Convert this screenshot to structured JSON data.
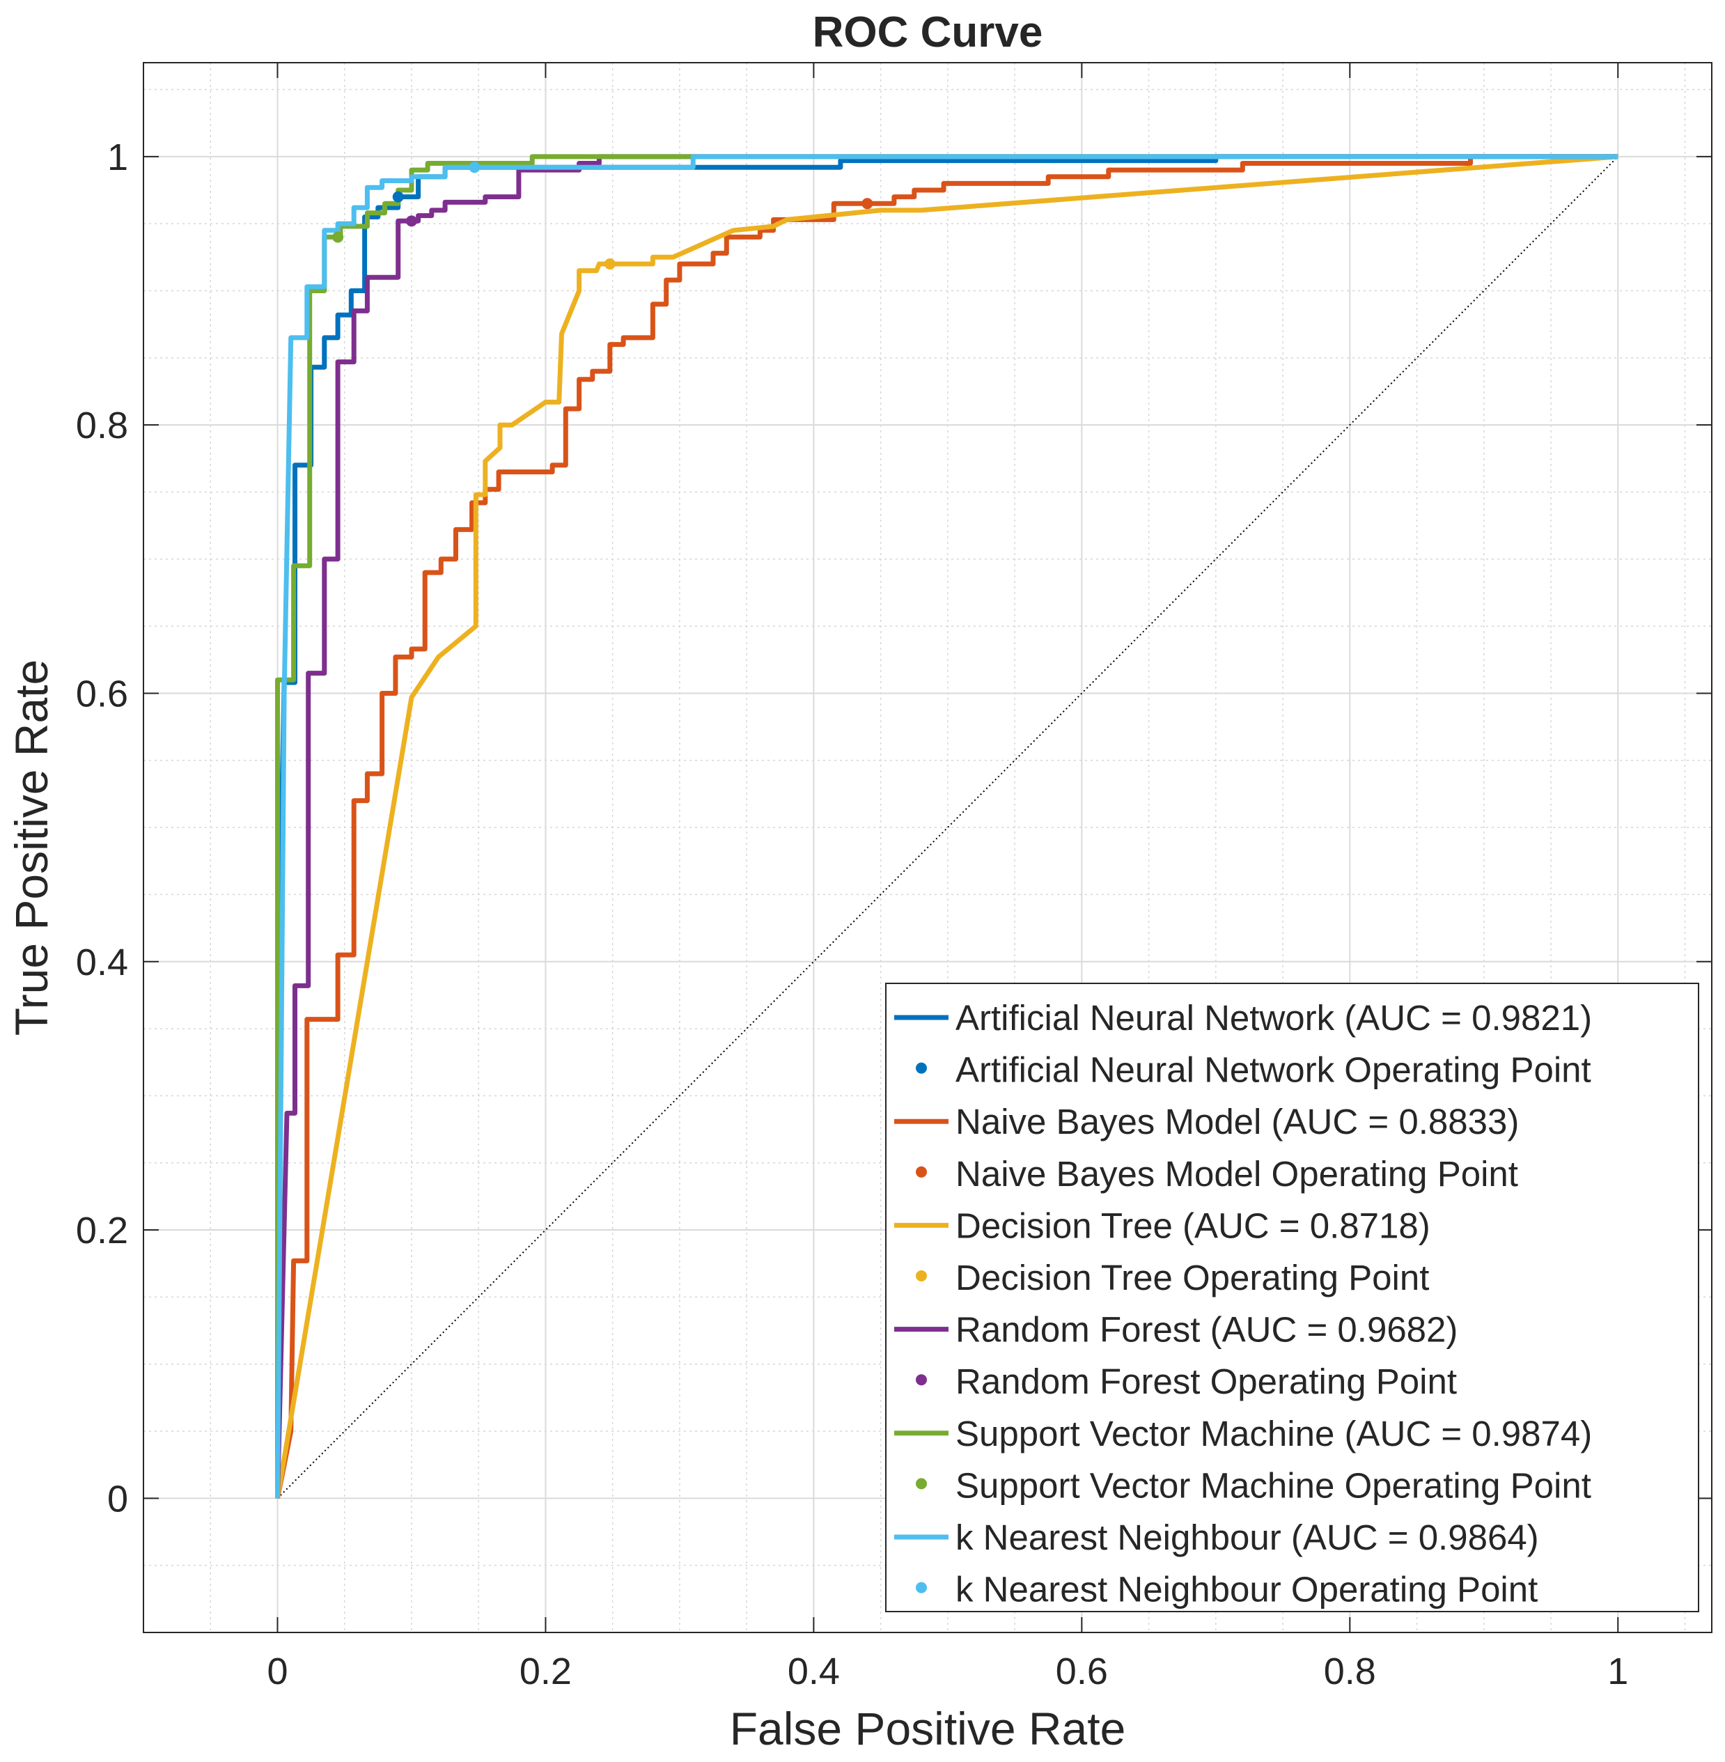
{
  "chart_data": {
    "type": "line",
    "title": "ROC Curve",
    "xlabel": "False Positive Rate",
    "ylabel": "True Positive Rate",
    "xlim": [
      -0.1,
      1.07
    ],
    "ylim": [
      -0.1,
      1.07
    ],
    "grid": true,
    "minor_grid": true,
    "legend_position": "bottom-right",
    "x_ticks": [
      {
        "value": 0,
        "label": "0"
      },
      {
        "value": 0.2,
        "label": "0.2"
      },
      {
        "value": 0.4,
        "label": "0.4"
      },
      {
        "value": 0.6,
        "label": "0.6"
      },
      {
        "value": 0.8,
        "label": "0.8"
      },
      {
        "value": 1,
        "label": "1"
      }
    ],
    "y_ticks": [
      {
        "value": 0,
        "label": "0"
      },
      {
        "value": 0.2,
        "label": "0.2"
      },
      {
        "value": 0.4,
        "label": "0.4"
      },
      {
        "value": 0.6,
        "label": "0.6"
      },
      {
        "value": 0.8,
        "label": "0.8"
      },
      {
        "value": 1,
        "label": "1"
      }
    ],
    "chance_line": {
      "points": [
        [
          0,
          0
        ],
        [
          1,
          1
        ]
      ],
      "color": "#000000",
      "style": "dotted"
    },
    "series": [
      {
        "name": "Artificial Neural Network (AUC = 0.9821)",
        "op_name": "Artificial Neural Network Operating Point",
        "color": "#0072BD",
        "operating_point": [
          0.09,
          0.97
        ],
        "points": [
          [
            0,
            0
          ],
          [
            0,
            0.35
          ],
          [
            0.005,
            0.608
          ],
          [
            0.013,
            0.608
          ],
          [
            0.013,
            0.77
          ],
          [
            0.025,
            0.77
          ],
          [
            0.025,
            0.843
          ],
          [
            0.035,
            0.843
          ],
          [
            0.035,
            0.865
          ],
          [
            0.045,
            0.865
          ],
          [
            0.045,
            0.882
          ],
          [
            0.055,
            0.882
          ],
          [
            0.055,
            0.9
          ],
          [
            0.065,
            0.9
          ],
          [
            0.065,
            0.955
          ],
          [
            0.075,
            0.955
          ],
          [
            0.075,
            0.962
          ],
          [
            0.09,
            0.962
          ],
          [
            0.09,
            0.97
          ],
          [
            0.105,
            0.97
          ],
          [
            0.105,
            0.985
          ],
          [
            0.125,
            0.985
          ],
          [
            0.125,
            0.992
          ],
          [
            0.42,
            0.992
          ],
          [
            0.42,
            0.997
          ],
          [
            0.7,
            0.997
          ],
          [
            0.7,
            1.0
          ],
          [
            1,
            1
          ]
        ]
      },
      {
        "name": "Naive Bayes Model (AUC = 0.8833)",
        "op_name": "Naive Bayes Model Operating Point",
        "color": "#D95319",
        "operating_point": [
          0.44,
          0.965
        ],
        "points": [
          [
            0,
            0
          ],
          [
            0.01,
            0.05
          ],
          [
            0.012,
            0.177
          ],
          [
            0.022,
            0.177
          ],
          [
            0.022,
            0.357
          ],
          [
            0.045,
            0.357
          ],
          [
            0.045,
            0.405
          ],
          [
            0.057,
            0.405
          ],
          [
            0.057,
            0.52
          ],
          [
            0.067,
            0.52
          ],
          [
            0.067,
            0.54
          ],
          [
            0.078,
            0.54
          ],
          [
            0.078,
            0.6
          ],
          [
            0.088,
            0.6
          ],
          [
            0.088,
            0.627
          ],
          [
            0.1,
            0.627
          ],
          [
            0.1,
            0.633
          ],
          [
            0.11,
            0.633
          ],
          [
            0.11,
            0.69
          ],
          [
            0.122,
            0.69
          ],
          [
            0.122,
            0.7
          ],
          [
            0.133,
            0.7
          ],
          [
            0.133,
            0.722
          ],
          [
            0.145,
            0.722
          ],
          [
            0.145,
            0.742
          ],
          [
            0.155,
            0.742
          ],
          [
            0.155,
            0.752
          ],
          [
            0.165,
            0.752
          ],
          [
            0.165,
            0.765
          ],
          [
            0.205,
            0.765
          ],
          [
            0.205,
            0.77
          ],
          [
            0.215,
            0.77
          ],
          [
            0.215,
            0.812
          ],
          [
            0.225,
            0.812
          ],
          [
            0.225,
            0.834
          ],
          [
            0.235,
            0.834
          ],
          [
            0.235,
            0.84
          ],
          [
            0.248,
            0.84
          ],
          [
            0.248,
            0.86
          ],
          [
            0.258,
            0.86
          ],
          [
            0.258,
            0.865
          ],
          [
            0.28,
            0.865
          ],
          [
            0.28,
            0.89
          ],
          [
            0.29,
            0.89
          ],
          [
            0.29,
            0.908
          ],
          [
            0.3,
            0.908
          ],
          [
            0.3,
            0.92
          ],
          [
            0.325,
            0.92
          ],
          [
            0.325,
            0.928
          ],
          [
            0.335,
            0.928
          ],
          [
            0.335,
            0.94
          ],
          [
            0.36,
            0.94
          ],
          [
            0.36,
            0.945
          ],
          [
            0.37,
            0.945
          ],
          [
            0.37,
            0.953
          ],
          [
            0.415,
            0.953
          ],
          [
            0.415,
            0.965
          ],
          [
            0.46,
            0.965
          ],
          [
            0.46,
            0.97
          ],
          [
            0.475,
            0.97
          ],
          [
            0.475,
            0.975
          ],
          [
            0.497,
            0.975
          ],
          [
            0.497,
            0.98
          ],
          [
            0.575,
            0.98
          ],
          [
            0.575,
            0.985
          ],
          [
            0.62,
            0.985
          ],
          [
            0.62,
            0.99
          ],
          [
            0.72,
            0.99
          ],
          [
            0.72,
            0.995
          ],
          [
            0.89,
            0.995
          ],
          [
            0.89,
            1.0
          ],
          [
            1,
            1
          ]
        ]
      },
      {
        "name": "Decision Tree (AUC = 0.8718)",
        "op_name": "Decision Tree Operating Point",
        "color": "#EDB120",
        "operating_point": [
          0.248,
          0.92
        ],
        "points": [
          [
            0,
            0
          ],
          [
            0.1,
            0.597
          ],
          [
            0.12,
            0.627
          ],
          [
            0.148,
            0.65
          ],
          [
            0.148,
            0.748
          ],
          [
            0.155,
            0.748
          ],
          [
            0.155,
            0.773
          ],
          [
            0.166,
            0.783
          ],
          [
            0.166,
            0.8
          ],
          [
            0.175,
            0.8
          ],
          [
            0.2,
            0.817
          ],
          [
            0.21,
            0.817
          ],
          [
            0.212,
            0.868
          ],
          [
            0.225,
            0.9
          ],
          [
            0.225,
            0.915
          ],
          [
            0.238,
            0.915
          ],
          [
            0.24,
            0.92
          ],
          [
            0.28,
            0.92
          ],
          [
            0.28,
            0.925
          ],
          [
            0.295,
            0.925
          ],
          [
            0.34,
            0.945
          ],
          [
            0.37,
            0.948
          ],
          [
            0.38,
            0.953
          ],
          [
            0.45,
            0.96
          ],
          [
            0.48,
            0.96
          ],
          [
            1,
            1
          ]
        ]
      },
      {
        "name": "Random Forest (AUC = 0.9682)",
        "op_name": "Random Forest Operating Point",
        "color": "#7E2F8E",
        "operating_point": [
          0.1,
          0.952
        ],
        "points": [
          [
            0,
            0
          ],
          [
            0.007,
            0.287
          ],
          [
            0.013,
            0.287
          ],
          [
            0.013,
            0.382
          ],
          [
            0.023,
            0.382
          ],
          [
            0.023,
            0.615
          ],
          [
            0.035,
            0.615
          ],
          [
            0.035,
            0.7
          ],
          [
            0.045,
            0.7
          ],
          [
            0.045,
            0.847
          ],
          [
            0.057,
            0.847
          ],
          [
            0.057,
            0.885
          ],
          [
            0.067,
            0.885
          ],
          [
            0.067,
            0.91
          ],
          [
            0.09,
            0.91
          ],
          [
            0.09,
            0.952
          ],
          [
            0.105,
            0.952
          ],
          [
            0.105,
            0.956
          ],
          [
            0.115,
            0.956
          ],
          [
            0.115,
            0.96
          ],
          [
            0.125,
            0.96
          ],
          [
            0.125,
            0.966
          ],
          [
            0.155,
            0.966
          ],
          [
            0.155,
            0.97
          ],
          [
            0.18,
            0.97
          ],
          [
            0.18,
            0.99
          ],
          [
            0.225,
            0.99
          ],
          [
            0.225,
            0.995
          ],
          [
            0.24,
            0.995
          ],
          [
            0.24,
            1.0
          ],
          [
            1,
            1
          ]
        ]
      },
      {
        "name": "Support Vector Machine (AUC = 0.9874)",
        "op_name": "Support Vector Machine Operating Point",
        "color": "#77AC30",
        "operating_point": [
          0.045,
          0.94
        ],
        "points": [
          [
            0,
            0
          ],
          [
            0,
            0.61
          ],
          [
            0.012,
            0.61
          ],
          [
            0.012,
            0.695
          ],
          [
            0.024,
            0.695
          ],
          [
            0.024,
            0.9
          ],
          [
            0.035,
            0.9
          ],
          [
            0.035,
            0.94
          ],
          [
            0.047,
            0.94
          ],
          [
            0.047,
            0.948
          ],
          [
            0.067,
            0.948
          ],
          [
            0.067,
            0.958
          ],
          [
            0.08,
            0.958
          ],
          [
            0.08,
            0.965
          ],
          [
            0.09,
            0.965
          ],
          [
            0.09,
            0.975
          ],
          [
            0.1,
            0.975
          ],
          [
            0.1,
            0.99
          ],
          [
            0.112,
            0.99
          ],
          [
            0.112,
            0.995
          ],
          [
            0.19,
            0.995
          ],
          [
            0.19,
            1.0
          ],
          [
            0.31,
            1.0
          ],
          [
            1,
            1
          ]
        ]
      },
      {
        "name": "k Nearest Neighbour (AUC = 0.9864)",
        "op_name": "k Nearest Neighbour Operating Point",
        "color": "#4DBEEE",
        "operating_point": [
          0.147,
          0.992
        ],
        "points": [
          [
            0,
            0
          ],
          [
            0.005,
            0.6
          ],
          [
            0.01,
            0.865
          ],
          [
            0.022,
            0.865
          ],
          [
            0.022,
            0.903
          ],
          [
            0.035,
            0.903
          ],
          [
            0.035,
            0.945
          ],
          [
            0.045,
            0.945
          ],
          [
            0.045,
            0.95
          ],
          [
            0.057,
            0.95
          ],
          [
            0.057,
            0.962
          ],
          [
            0.067,
            0.962
          ],
          [
            0.067,
            0.977
          ],
          [
            0.078,
            0.977
          ],
          [
            0.078,
            0.982
          ],
          [
            0.1,
            0.982
          ],
          [
            0.1,
            0.985
          ],
          [
            0.125,
            0.985
          ],
          [
            0.125,
            0.992
          ],
          [
            0.31,
            0.992
          ],
          [
            0.31,
            1.0
          ],
          [
            1,
            1
          ]
        ]
      }
    ]
  }
}
